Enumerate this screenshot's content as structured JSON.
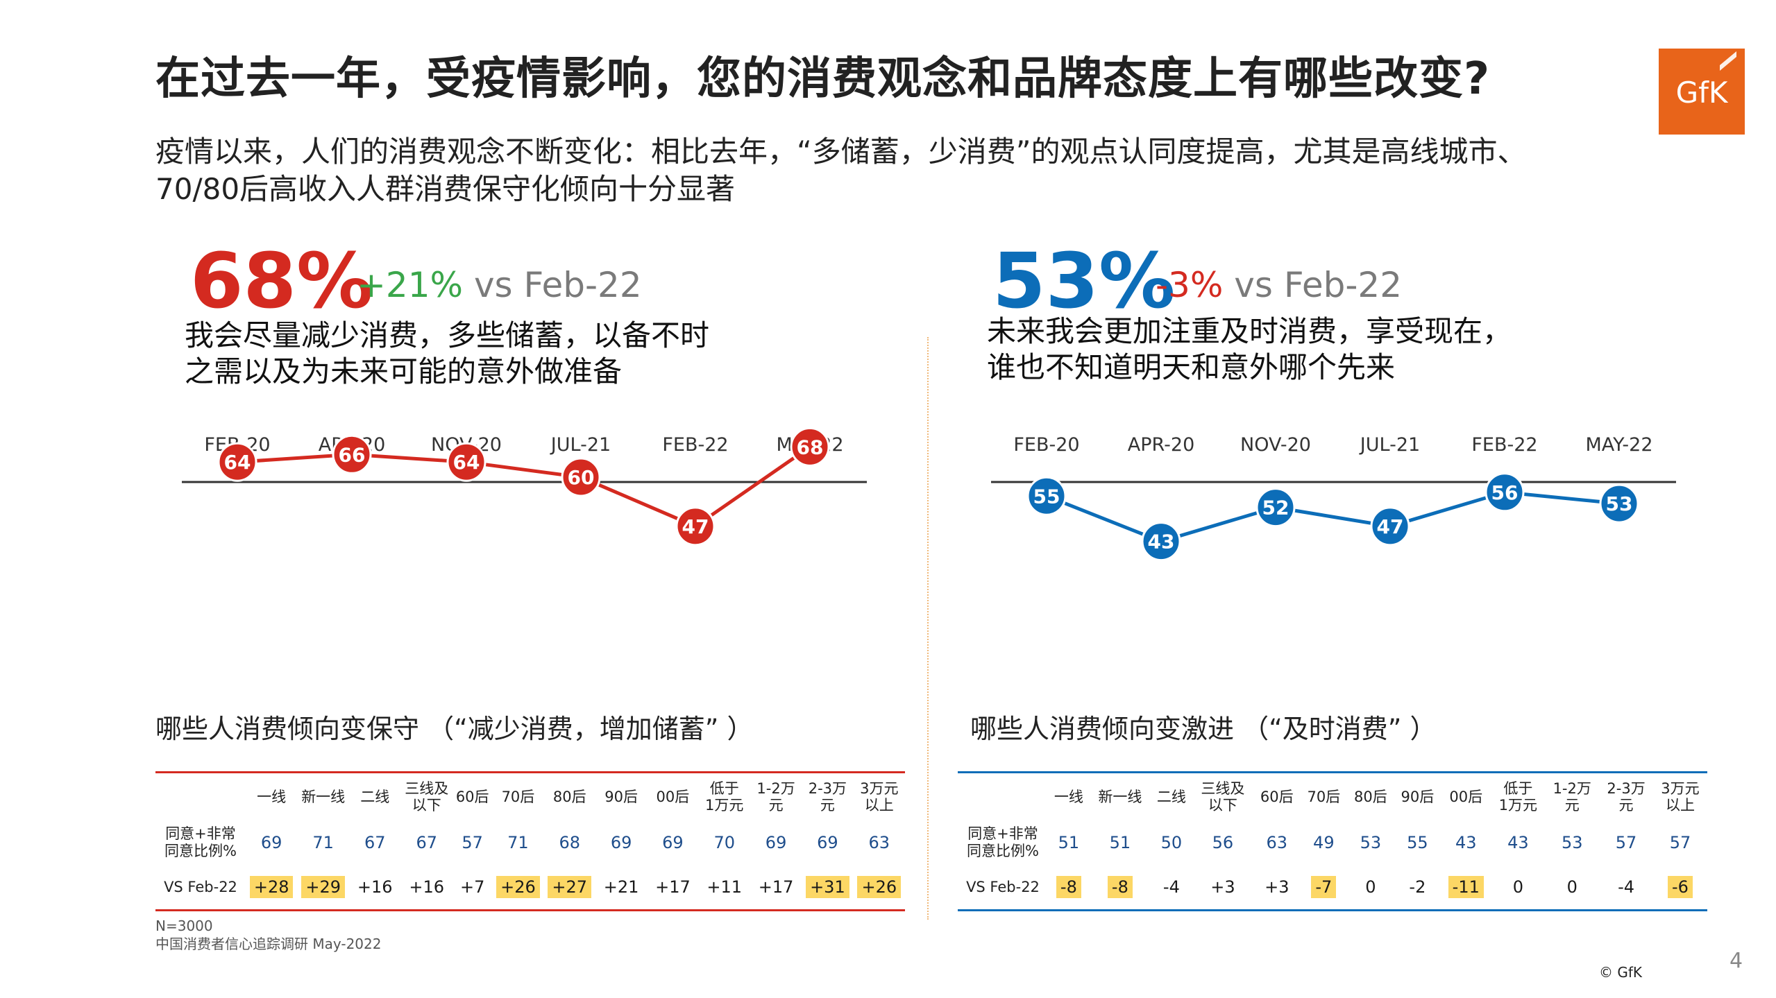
{
  "title": "在过去一年，受疫情影响，您的消费观念和品牌态度上有哪些改变?",
  "logo_text": "GfK",
  "subtitle": "疫情以来，人们的消费观念不断变化：相比去年，“多储蓄，少消费”的观点认同度提高，尤其是高线城市、70/80后高收入人群消费保守化倾向十分显著",
  "left": {
    "big_pct": "68%",
    "delta": "+21%",
    "vs": "vs Feb-22",
    "statement_line1": "我会尽量减少消费，多些储蓄，以备不时",
    "statement_line2": "之需以及为未来可能的意外做准备",
    "table_title": "哪些人消费倾向变保守 （“减少消费，增加储蓄” ）"
  },
  "right": {
    "big_pct": "53%",
    "delta": "-3%",
    "vs": "vs Feb-22",
    "statement_line1": "未来我会更加注重及时消费，享受现在，",
    "statement_line2": "谁也不知道明天和意外哪个先来",
    "table_title": "哪些人消费倾向变激进 （“及时消费” ）"
  },
  "table": {
    "columns": [
      "一线",
      "新一线",
      "二线",
      "三线及\n以下",
      "60后",
      "70后",
      "80后",
      "90后",
      "00后",
      "低于\n1万元",
      "1-2万\n元",
      "2-3万\n元",
      "3万元\n以上"
    ],
    "row1_label": "同意+非常\n同意比例%",
    "row2_label": "VS Feb-22"
  },
  "footnote_line1": "N=3000",
  "footnote_line2": "中国消费者信心追踪调研 May-2022",
  "page_number": "4",
  "copyright": "© GfK",
  "colors": {
    "red": "#d42a20",
    "blue": "#0c6db8",
    "green": "#3aa64a",
    "highlight": "#fcd765",
    "logo": "#e8641a"
  },
  "chart_data": [
    {
      "type": "line",
      "categories": [
        "FEB-20",
        "APR-20",
        "NOV-20",
        "JUL-21",
        "FEB-22",
        "MAY-22"
      ],
      "values": [
        64,
        66,
        64,
        60,
        47,
        68
      ],
      "color": "#d42a20",
      "table": {
        "values": [
          69,
          71,
          67,
          67,
          57,
          71,
          68,
          69,
          69,
          70,
          69,
          69,
          63
        ],
        "vs": [
          "+28",
          "+29",
          "+16",
          "+16",
          "+7",
          "+26",
          "+27",
          "+21",
          "+17",
          "+11",
          "+17",
          "+31",
          "+26"
        ],
        "highlight": [
          true,
          true,
          false,
          false,
          false,
          true,
          true,
          false,
          false,
          false,
          false,
          true,
          true
        ]
      }
    },
    {
      "type": "line",
      "categories": [
        "FEB-20",
        "APR-20",
        "NOV-20",
        "JUL-21",
        "FEB-22",
        "MAY-22"
      ],
      "values": [
        55,
        43,
        52,
        47,
        56,
        53
      ],
      "color": "#0c6db8",
      "table": {
        "values": [
          51,
          51,
          50,
          56,
          63,
          49,
          53,
          55,
          43,
          43,
          53,
          57,
          57
        ],
        "vs": [
          "-8",
          "-8",
          "-4",
          "+3",
          "+3",
          "-7",
          "0",
          "-2",
          "-11",
          "0",
          "0",
          "-4",
          "-6"
        ],
        "highlight": [
          true,
          true,
          false,
          false,
          false,
          true,
          false,
          false,
          true,
          false,
          false,
          false,
          true
        ]
      }
    }
  ]
}
